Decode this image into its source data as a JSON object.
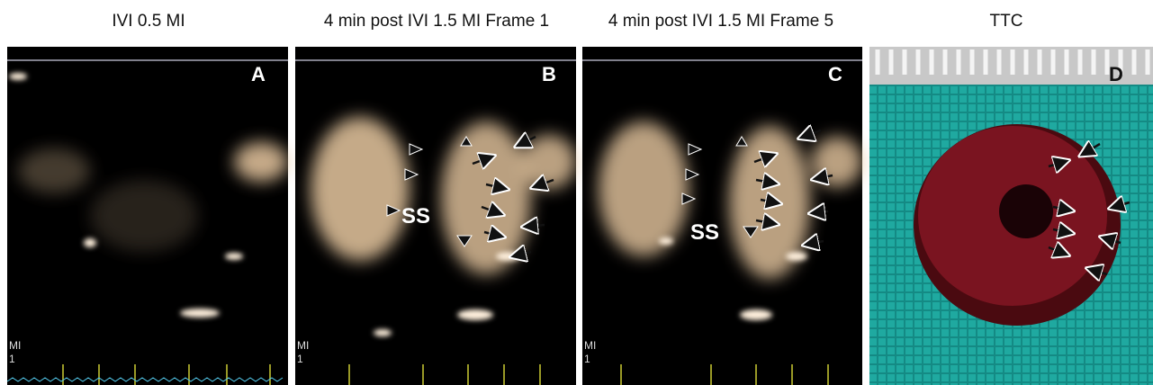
{
  "panels": [
    {
      "title": "IVI 0.5 MI",
      "letter": "A",
      "mi_label": "MI",
      "mi_value": "1"
    },
    {
      "title": "4 min post IVI 1.5 MI Frame 1",
      "letter": "B",
      "annotation": "SS",
      "mi_label": "MI",
      "mi_value": "1"
    },
    {
      "title": "4 min post IVI 1.5 MI Frame 5",
      "letter": "C",
      "annotation": "SS",
      "mi_label": "MI",
      "mi_value": "1"
    },
    {
      "title": "TTC",
      "letter": "D"
    }
  ]
}
